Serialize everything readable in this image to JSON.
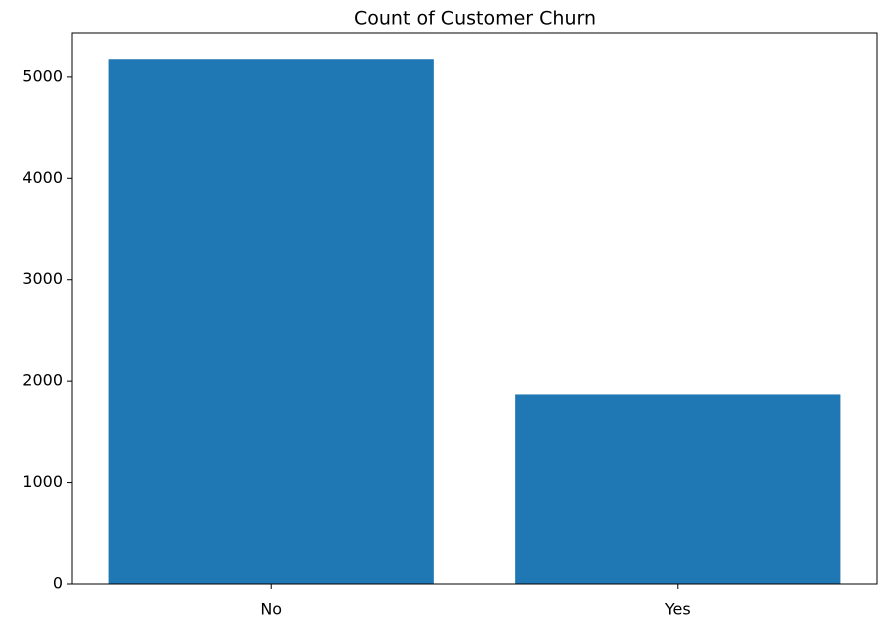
{
  "chart_data": {
    "type": "bar",
    "title": "Count of Customer Churn",
    "categories": [
      "No",
      "Yes"
    ],
    "values": [
      5174,
      1869
    ],
    "color": "#1f77b4",
    "ylim": [
      0,
      5432.7
    ],
    "yticks": [
      0,
      1000,
      2000,
      3000,
      4000,
      5000
    ],
    "grid": false
  }
}
